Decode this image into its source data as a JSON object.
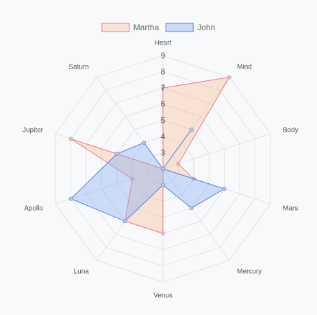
{
  "chart_data": {
    "type": "radar",
    "axes": [
      "Heart",
      "Mind",
      "Body",
      "Mars",
      "Mercury",
      "Venus",
      "Luna",
      "Apollo",
      "Jupiter",
      "Saturn"
    ],
    "r_min": 2,
    "r_max": 9,
    "ticks": [
      3,
      4,
      5,
      6,
      7,
      8,
      9
    ],
    "grid": true,
    "legend_position": "top",
    "series": [
      {
        "name": "Martha",
        "values": [
          7,
          9,
          3,
          4,
          2,
          6,
          6,
          4,
          8,
          2
        ],
        "stroke": "#f07a8a",
        "fill": "rgba(246,170,110,0.28)"
      },
      {
        "name": "John",
        "values": [
          2,
          5,
          2,
          6,
          5,
          3,
          6,
          8,
          5,
          4
        ],
        "stroke": "#4a82ea",
        "fill": "rgba(130,170,245,0.38)"
      }
    ]
  }
}
